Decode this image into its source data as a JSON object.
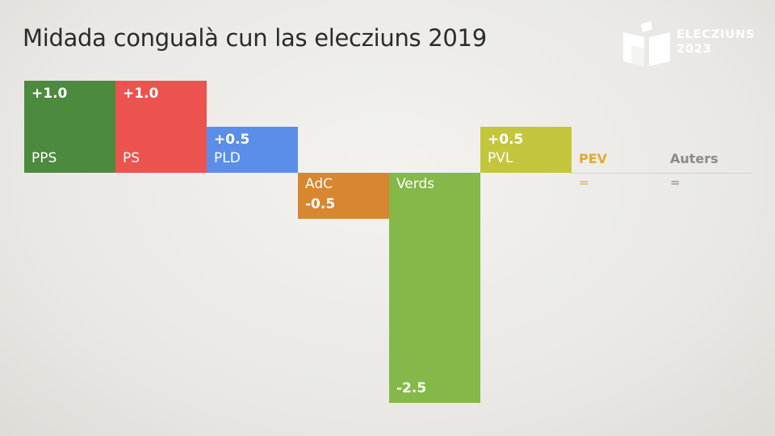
{
  "title": "Midada congualà cun las elecziuns 2019",
  "logo": {
    "line1": "ELECZIUNS",
    "line2": "2023",
    "icon": "ballot-box-icon"
  },
  "chart_data": {
    "type": "bar",
    "title": "Midada congualà cun las elecziuns 2019",
    "xlabel": "",
    "ylabel": "",
    "grid": false,
    "bars": [
      {
        "party": "PPS",
        "value": 1.0,
        "label": "+1.0",
        "color": "#4c8a3d"
      },
      {
        "party": "PS",
        "value": 1.0,
        "label": "+1.0",
        "color": "#ec534f"
      },
      {
        "party": "PLD",
        "value": 0.5,
        "label": "+0.5",
        "color": "#5b8ee9"
      },
      {
        "party": "AdC",
        "value": -0.5,
        "label": "-0.5",
        "color": "#d8862f"
      },
      {
        "party": "Verds",
        "value": -2.5,
        "label": "-2.5",
        "color": "#84b848"
      },
      {
        "party": "PVL",
        "value": 0.5,
        "label": "+0.5",
        "color": "#c3c63c"
      },
      {
        "party": "PEV",
        "value": 0,
        "label": "=",
        "color": "#e2a92e"
      },
      {
        "party": "Auters",
        "value": 0,
        "label": "=",
        "color": "#8a8a8a"
      }
    ]
  }
}
